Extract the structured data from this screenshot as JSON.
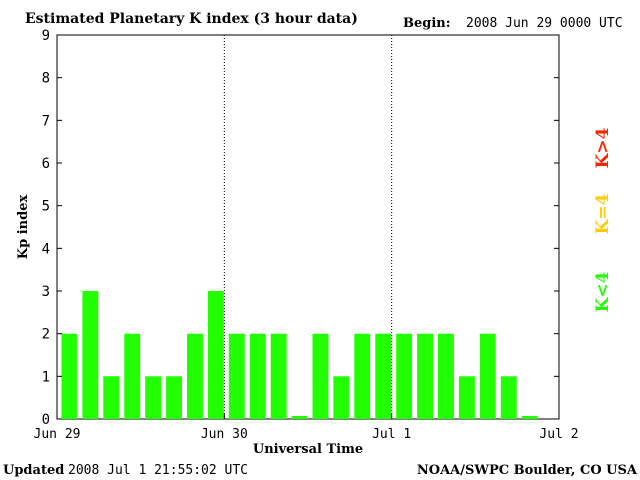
{
  "chart_data": {
    "type": "bar",
    "title": "Estimated Planetary K index (3 hour data)",
    "begin_label": "Begin:",
    "begin_value": "2008 Jun 29 0000 UTC",
    "ylabel": "Kp index",
    "xlabel": "Universal Time",
    "ylim": [
      0,
      9
    ],
    "y_ticks": [
      "0",
      "1",
      "2",
      "3",
      "4",
      "5",
      "6",
      "7",
      "8",
      "9"
    ],
    "x_ticks": [
      "Jun 29",
      "Jun 30",
      "Jul 1",
      "Jul 2"
    ],
    "day_separators": true,
    "slots": 24,
    "values": [
      2,
      3,
      1,
      2,
      1,
      1,
      2,
      3,
      2,
      2,
      2,
      0.07,
      2,
      1,
      2,
      2,
      2,
      2,
      2,
      1,
      2,
      1,
      0.07
    ],
    "bar_color": "#22ff00",
    "legend": [
      {
        "label": "K<4",
        "color": "#22ff00"
      },
      {
        "label": "K=4",
        "color": "#ffcc00"
      },
      {
        "label": "K>4",
        "color": "#ff2200"
      }
    ]
  },
  "footer": {
    "updated_label": "Updated",
    "updated_value": "2008 Jul  1 21:55:02 UTC",
    "source": "NOAA/SWPC Boulder, CO USA"
  }
}
